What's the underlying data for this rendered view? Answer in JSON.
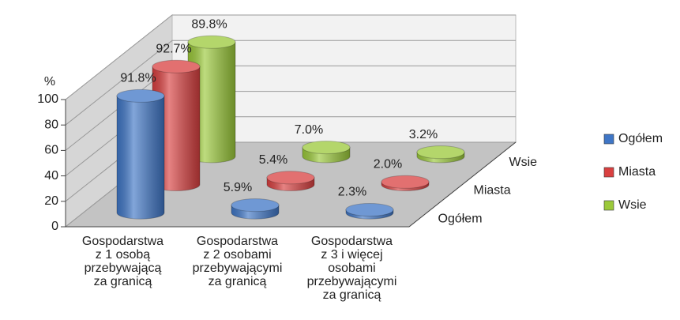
{
  "chart_data": {
    "type": "bar3d",
    "y_axis_label": "%",
    "categories": [
      "Gospodarstwa\nz 1 osobą\nprzebywającą\nza granicą",
      "Gospodarstwa\nz 2 osobami\nprzebywającymi\nza granicą",
      "Gospodarstwa\nz 3 i więcej\nosobami\nprzebywającymi\nza granicą"
    ],
    "series": [
      {
        "name": "Ogółem",
        "color": "#3f76c6",
        "values": [
          91.8,
          5.9,
          2.3
        ],
        "value_labels": [
          "91.8%",
          "5.9%",
          "2.3%"
        ]
      },
      {
        "name": "Miasta",
        "color": "#d94040",
        "values": [
          92.7,
          5.4,
          2.0
        ],
        "value_labels": [
          "92.7%",
          "5.4%",
          "2.0%"
        ]
      },
      {
        "name": "Wsie",
        "color": "#9bc93a",
        "values": [
          89.8,
          7.0,
          3.2
        ],
        "value_labels": [
          "89.8%",
          "7.0%",
          "3.2%"
        ]
      }
    ],
    "ylim": [
      0,
      100
    ],
    "yticks": [
      0,
      20,
      40,
      60,
      80,
      100
    ],
    "grid": true,
    "legend": "right"
  }
}
